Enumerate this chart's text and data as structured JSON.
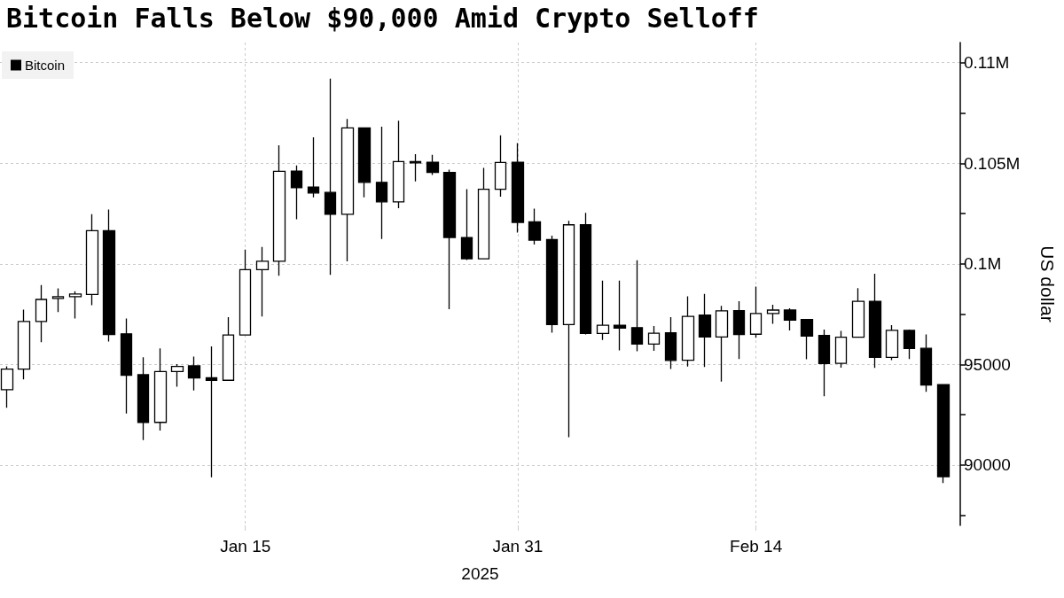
{
  "chart_data": {
    "type": "candlestick",
    "title": "Bitcoin Falls Below $90,000 Amid Crypto Selloff",
    "xlabel": "2025",
    "ylabel": "US dollar",
    "legend": "top left",
    "grid": true,
    "xlim": [
      "2024-12-31T14:00",
      "2025-02-26"
    ],
    "xticks": [
      {
        "value": "2025-01-15",
        "label": "Jan 15"
      },
      {
        "value": "2025-01-31",
        "label": "Jan 31"
      },
      {
        "value": "2025-02-14",
        "label": "Feb 14"
      }
    ],
    "ylim": [
      87000,
      111000
    ],
    "yticks": [
      {
        "value": 87500,
        "label": null
      },
      90000,
      {
        "value": 92500,
        "label": null
      },
      95000,
      {
        "value": 97500,
        "label": null
      },
      {
        "value": 100000,
        "label": "0.1M"
      },
      {
        "value": 102500,
        "label": null
      },
      {
        "value": 105000,
        "label": "0.105M"
      },
      {
        "value": 107500,
        "label": null
      },
      {
        "value": 110000,
        "label": "0.11M"
      }
    ],
    "x": [
      "2025-01-01",
      "2025-01-02",
      "2025-01-03",
      "2025-01-04",
      "2025-01-05",
      "2025-01-06",
      "2025-01-07",
      "2025-01-08",
      "2025-01-09",
      "2025-01-10",
      "2025-01-11",
      "2025-01-12",
      "2025-01-13",
      "2025-01-14",
      "2025-01-15",
      "2025-01-16",
      "2025-01-17",
      "2025-01-18",
      "2025-01-19",
      "2025-01-20",
      "2025-01-21",
      "2025-01-22",
      "2025-01-23",
      "2025-01-24",
      "2025-01-25",
      "2025-01-26",
      "2025-01-27",
      "2025-01-28",
      "2025-01-29",
      "2025-01-30",
      "2025-01-31",
      "2025-02-01",
      "2025-02-02",
      "2025-02-03",
      "2025-02-04",
      "2025-02-05",
      "2025-02-06",
      "2025-02-07",
      "2025-02-08",
      "2025-02-09",
      "2025-02-10",
      "2025-02-11",
      "2025-02-12",
      "2025-02-13",
      "2025-02-14",
      "2025-02-15",
      "2025-02-16",
      "2025-02-17",
      "2025-02-18",
      "2025-02-19",
      "2025-02-20",
      "2025-02-21",
      "2025-02-22",
      "2025-02-23",
      "2025-02-24",
      "2025-02-25"
    ],
    "series": [
      {
        "name": "Bitcoin",
        "color": "#000000",
        "ohlc": [
          [
            93740,
            94900,
            92850,
            94770
          ],
          [
            94770,
            97720,
            94260,
            97130
          ],
          [
            97130,
            98940,
            96100,
            98230
          ],
          [
            98280,
            98780,
            97600,
            98370
          ],
          [
            98370,
            98640,
            97280,
            98500
          ],
          [
            98480,
            102470,
            97940,
            101650
          ],
          [
            101650,
            102700,
            96140,
            96490
          ],
          [
            96520,
            97280,
            92560,
            94460
          ],
          [
            94490,
            95360,
            91240,
            92120
          ],
          [
            92120,
            95800,
            91710,
            94650
          ],
          [
            94650,
            95020,
            93890,
            94900
          ],
          [
            94930,
            95390,
            93710,
            94330
          ],
          [
            94340,
            95900,
            89390,
            94210
          ],
          [
            94210,
            97350,
            94210,
            96460
          ],
          [
            96460,
            100710,
            96460,
            99710
          ],
          [
            99710,
            100840,
            97380,
            100130
          ],
          [
            100130,
            105890,
            99410,
            104600
          ],
          [
            104610,
            104890,
            102210,
            103790
          ],
          [
            103820,
            106290,
            103310,
            103520
          ],
          [
            103550,
            109210,
            99450,
            102460
          ],
          [
            102460,
            107200,
            100120,
            106760
          ],
          [
            106760,
            106760,
            103310,
            104050
          ],
          [
            104050,
            106820,
            101240,
            103080
          ],
          [
            103080,
            107110,
            102770,
            105080
          ],
          [
            105080,
            105450,
            104100,
            105020
          ],
          [
            105050,
            105420,
            104420,
            104540
          ],
          [
            104540,
            104680,
            97750,
            101310
          ],
          [
            101310,
            103710,
            100190,
            100250
          ],
          [
            100250,
            104770,
            100250,
            103710
          ],
          [
            103710,
            106390,
            103340,
            105040
          ],
          [
            105050,
            106000,
            101550,
            102060
          ],
          [
            102090,
            102740,
            100960,
            101180
          ],
          [
            101210,
            101400,
            96580,
            96980
          ],
          [
            96980,
            102140,
            91380,
            101940
          ],
          [
            101940,
            102530,
            96490,
            96540
          ],
          [
            96540,
            99160,
            96210,
            96950
          ],
          [
            96950,
            99160,
            95700,
            96800
          ],
          [
            96830,
            100180,
            95650,
            96010
          ],
          [
            96010,
            96910,
            95680,
            96550
          ],
          [
            96570,
            97350,
            94770,
            95200
          ],
          [
            95210,
            98380,
            94890,
            97390
          ],
          [
            97450,
            98500,
            94870,
            96360
          ],
          [
            96360,
            97910,
            94140,
            97660
          ],
          [
            97670,
            98140,
            95270,
            96490
          ],
          [
            96500,
            98870,
            96320,
            97530
          ],
          [
            97530,
            97970,
            97020,
            97700
          ],
          [
            97700,
            97790,
            96690,
            97200
          ],
          [
            97230,
            97230,
            95260,
            96410
          ],
          [
            96440,
            96730,
            93420,
            95040
          ],
          [
            95050,
            96670,
            94840,
            96350
          ],
          [
            96350,
            98790,
            96350,
            98140
          ],
          [
            98140,
            99510,
            94830,
            95350
          ],
          [
            95350,
            96950,
            95210,
            96690
          ],
          [
            96690,
            96730,
            95270,
            95790
          ],
          [
            95800,
            96490,
            93640,
            93980
          ],
          [
            93990,
            93990,
            89100,
            89420
          ]
        ]
      }
    ]
  }
}
